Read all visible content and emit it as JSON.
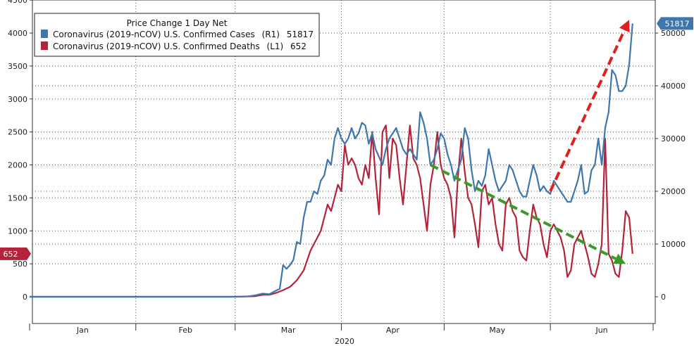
{
  "chart_data": {
    "type": "line",
    "title": "",
    "legend": {
      "title": "Price Change 1 Day Net",
      "placement": "top-left"
    },
    "x_axis": {
      "month_labels": [
        "Jan",
        "Feb",
        "Mar",
        "Apr",
        "May",
        "Jun"
      ],
      "year_label": "2020",
      "range": [
        "2020-01-01",
        "2020-07-01"
      ]
    },
    "y_left": {
      "ticks": [
        0,
        500,
        1000,
        1500,
        2000,
        2500,
        3000,
        3500,
        4000,
        4500
      ],
      "range": [
        -450,
        4500
      ],
      "series": "deaths"
    },
    "y_right": {
      "ticks": [
        0,
        10000,
        20000,
        30000,
        40000,
        50000
      ],
      "range": [
        -5400,
        54000
      ],
      "series": "cases"
    },
    "grid": true,
    "series": [
      {
        "key": "cases",
        "name": "Coronavirus (2019-nCOV) U.S. Confirmed Cases",
        "axis_label": "(R1)",
        "last_value": "51817",
        "axis": "right",
        "color": "#3f76ad",
        "points": [
          [
            "2020-01-01",
            0
          ],
          [
            "2020-01-31",
            0
          ],
          [
            "2020-02-29",
            0
          ],
          [
            "2020-03-01",
            30
          ],
          [
            "2020-03-03",
            30
          ],
          [
            "2020-03-05",
            100
          ],
          [
            "2020-03-07",
            300
          ],
          [
            "2020-03-09",
            600
          ],
          [
            "2020-03-11",
            500
          ],
          [
            "2020-03-13",
            1200
          ],
          [
            "2020-03-14",
            1500
          ],
          [
            "2020-03-15",
            6000
          ],
          [
            "2020-03-16",
            5300
          ],
          [
            "2020-03-17",
            6000
          ],
          [
            "2020-03-18",
            7000
          ],
          [
            "2020-03-19",
            10400
          ],
          [
            "2020-03-20",
            10000
          ],
          [
            "2020-03-21",
            15000
          ],
          [
            "2020-03-22",
            18000
          ],
          [
            "2020-03-23",
            18000
          ],
          [
            "2020-03-24",
            20000
          ],
          [
            "2020-03-25",
            19500
          ],
          [
            "2020-03-26",
            22000
          ],
          [
            "2020-03-27",
            23000
          ],
          [
            "2020-03-28",
            26000
          ],
          [
            "2020-03-29",
            25000
          ],
          [
            "2020-03-30",
            30000
          ],
          [
            "2020-03-31",
            32000
          ],
          [
            "2020-04-01",
            30000
          ],
          [
            "2020-04-02",
            29000
          ],
          [
            "2020-04-03",
            30000
          ],
          [
            "2020-04-04",
            32000
          ],
          [
            "2020-04-05",
            30000
          ],
          [
            "2020-04-06",
            31000
          ],
          [
            "2020-04-07",
            33000
          ],
          [
            "2020-04-08",
            32500
          ],
          [
            "2020-04-09",
            29000
          ],
          [
            "2020-04-10",
            31000
          ],
          [
            "2020-04-11",
            28000
          ],
          [
            "2020-04-12",
            26500
          ],
          [
            "2020-04-13",
            25000
          ],
          [
            "2020-04-14",
            28000
          ],
          [
            "2020-04-15",
            30000
          ],
          [
            "2020-04-16",
            31000
          ],
          [
            "2020-04-17",
            32000
          ],
          [
            "2020-04-18",
            30000
          ],
          [
            "2020-04-19",
            28000
          ],
          [
            "2020-04-20",
            27000
          ],
          [
            "2020-04-21",
            28000
          ],
          [
            "2020-04-22",
            27000
          ],
          [
            "2020-04-23",
            26000
          ],
          [
            "2020-04-24",
            35000
          ],
          [
            "2020-04-25",
            33000
          ],
          [
            "2020-04-26",
            30000
          ],
          [
            "2020-04-27",
            25000
          ],
          [
            "2020-04-28",
            26000
          ],
          [
            "2020-04-29",
            28000
          ],
          [
            "2020-04-30",
            31000
          ],
          [
            "2020-05-01",
            30000
          ],
          [
            "2020-05-02",
            27000
          ],
          [
            "2020-05-03",
            25000
          ],
          [
            "2020-05-04",
            22000
          ],
          [
            "2020-05-05",
            24000
          ],
          [
            "2020-05-06",
            26000
          ],
          [
            "2020-05-07",
            32000
          ],
          [
            "2020-05-08",
            30000
          ],
          [
            "2020-05-09",
            24000
          ],
          [
            "2020-05-10",
            20000
          ],
          [
            "2020-05-11",
            22000
          ],
          [
            "2020-05-12",
            21000
          ],
          [
            "2020-05-13",
            23000
          ],
          [
            "2020-05-14",
            28000
          ],
          [
            "2020-05-15",
            25000
          ],
          [
            "2020-05-16",
            22000
          ],
          [
            "2020-05-17",
            20000
          ],
          [
            "2020-05-18",
            21000
          ],
          [
            "2020-05-19",
            22000
          ],
          [
            "2020-05-20",
            25000
          ],
          [
            "2020-05-21",
            24000
          ],
          [
            "2020-05-22",
            22000
          ],
          [
            "2020-05-23",
            20000
          ],
          [
            "2020-05-24",
            19000
          ],
          [
            "2020-05-25",
            19000
          ],
          [
            "2020-05-26",
            22000
          ],
          [
            "2020-05-27",
            25000
          ],
          [
            "2020-05-28",
            23000
          ],
          [
            "2020-05-29",
            20000
          ],
          [
            "2020-05-30",
            21000
          ],
          [
            "2020-05-31",
            20000
          ],
          [
            "2020-06-01",
            19500
          ],
          [
            "2020-06-02",
            22000
          ],
          [
            "2020-06-03",
            21000
          ],
          [
            "2020-06-04",
            20000
          ],
          [
            "2020-06-05",
            19000
          ],
          [
            "2020-06-06",
            18000
          ],
          [
            "2020-06-07",
            18000
          ],
          [
            "2020-06-08",
            20000
          ],
          [
            "2020-06-09",
            22000
          ],
          [
            "2020-06-10",
            25000
          ],
          [
            "2020-06-11",
            19500
          ],
          [
            "2020-06-12",
            20000
          ],
          [
            "2020-06-13",
            24000
          ],
          [
            "2020-06-14",
            25000
          ],
          [
            "2020-06-15",
            30000
          ],
          [
            "2020-06-16",
            25000
          ],
          [
            "2020-06-17",
            32000
          ],
          [
            "2020-06-18",
            35000
          ],
          [
            "2020-06-19",
            43000
          ],
          [
            "2020-06-20",
            42000
          ],
          [
            "2020-06-21",
            39000
          ],
          [
            "2020-06-22",
            39000
          ],
          [
            "2020-06-23",
            40000
          ],
          [
            "2020-06-24",
            44000
          ],
          [
            "2020-06-25",
            51817
          ]
        ]
      },
      {
        "key": "deaths",
        "name": "Coronavirus (2019-nCOV) U.S. Confirmed Deaths",
        "axis_label": "(L1)",
        "last_value": "652",
        "axis": "left",
        "color": "#b3243a",
        "points": [
          [
            "2020-01-01",
            0
          ],
          [
            "2020-01-31",
            0
          ],
          [
            "2020-02-29",
            0
          ],
          [
            "2020-03-01",
            0
          ],
          [
            "2020-03-05",
            5
          ],
          [
            "2020-03-07",
            10
          ],
          [
            "2020-03-09",
            30
          ],
          [
            "2020-03-11",
            30
          ],
          [
            "2020-03-13",
            60
          ],
          [
            "2020-03-15",
            100
          ],
          [
            "2020-03-17",
            150
          ],
          [
            "2020-03-18",
            200
          ],
          [
            "2020-03-19",
            250
          ],
          [
            "2020-03-21",
            400
          ],
          [
            "2020-03-22",
            550
          ],
          [
            "2020-03-23",
            700
          ],
          [
            "2020-03-24",
            800
          ],
          [
            "2020-03-25",
            900
          ],
          [
            "2020-03-26",
            1000
          ],
          [
            "2020-03-27",
            1200
          ],
          [
            "2020-03-28",
            1400
          ],
          [
            "2020-03-29",
            1300
          ],
          [
            "2020-03-30",
            1500
          ],
          [
            "2020-03-31",
            1700
          ],
          [
            "2020-04-01",
            1600
          ],
          [
            "2020-04-02",
            2300
          ],
          [
            "2020-04-03",
            2000
          ],
          [
            "2020-04-04",
            2100
          ],
          [
            "2020-04-05",
            2000
          ],
          [
            "2020-04-06",
            1800
          ],
          [
            "2020-04-07",
            1700
          ],
          [
            "2020-04-08",
            2000
          ],
          [
            "2020-04-09",
            1800
          ],
          [
            "2020-04-10",
            2500
          ],
          [
            "2020-04-11",
            1800
          ],
          [
            "2020-04-12",
            1250
          ],
          [
            "2020-04-13",
            2500
          ],
          [
            "2020-04-14",
            2600
          ],
          [
            "2020-04-15",
            1800
          ],
          [
            "2020-04-16",
            2400
          ],
          [
            "2020-04-17",
            2300
          ],
          [
            "2020-04-18",
            1800
          ],
          [
            "2020-04-19",
            1400
          ],
          [
            "2020-04-20",
            2000
          ],
          [
            "2020-04-21",
            2600
          ],
          [
            "2020-04-22",
            2100
          ],
          [
            "2020-04-23",
            2000
          ],
          [
            "2020-04-24",
            1800
          ],
          [
            "2020-04-25",
            1400
          ],
          [
            "2020-04-26",
            1000
          ],
          [
            "2020-04-27",
            1700
          ],
          [
            "2020-04-28",
            2000
          ],
          [
            "2020-04-29",
            2500
          ],
          [
            "2020-04-30",
            2000
          ],
          [
            "2020-05-01",
            1800
          ],
          [
            "2020-05-02",
            1700
          ],
          [
            "2020-05-03",
            1500
          ],
          [
            "2020-05-04",
            900
          ],
          [
            "2020-05-05",
            1800
          ],
          [
            "2020-05-06",
            2400
          ],
          [
            "2020-05-07",
            1900
          ],
          [
            "2020-05-08",
            1500
          ],
          [
            "2020-05-09",
            1400
          ],
          [
            "2020-05-10",
            1100
          ],
          [
            "2020-05-11",
            750
          ],
          [
            "2020-05-12",
            1600
          ],
          [
            "2020-05-13",
            1700
          ],
          [
            "2020-05-14",
            1400
          ],
          [
            "2020-05-15",
            1500
          ],
          [
            "2020-05-16",
            1100
          ],
          [
            "2020-05-17",
            800
          ],
          [
            "2020-05-18",
            700
          ],
          [
            "2020-05-19",
            1400
          ],
          [
            "2020-05-20",
            1500
          ],
          [
            "2020-05-21",
            1300
          ],
          [
            "2020-05-22",
            1200
          ],
          [
            "2020-05-23",
            700
          ],
          [
            "2020-05-24",
            600
          ],
          [
            "2020-05-25",
            550
          ],
          [
            "2020-05-26",
            1000
          ],
          [
            "2020-05-27",
            1400
          ],
          [
            "2020-05-28",
            1200
          ],
          [
            "2020-05-29",
            1100
          ],
          [
            "2020-05-30",
            800
          ],
          [
            "2020-05-31",
            600
          ],
          [
            "2020-06-01",
            1000
          ],
          [
            "2020-06-02",
            1100
          ],
          [
            "2020-06-03",
            1000
          ],
          [
            "2020-06-04",
            900
          ],
          [
            "2020-06-05",
            700
          ],
          [
            "2020-06-06",
            300
          ],
          [
            "2020-06-07",
            400
          ],
          [
            "2020-06-08",
            800
          ],
          [
            "2020-06-09",
            900
          ],
          [
            "2020-06-10",
            1000
          ],
          [
            "2020-06-11",
            800
          ],
          [
            "2020-06-12",
            600
          ],
          [
            "2020-06-13",
            350
          ],
          [
            "2020-06-14",
            300
          ],
          [
            "2020-06-15",
            500
          ],
          [
            "2020-06-16",
            800
          ],
          [
            "2020-06-17",
            2400
          ],
          [
            "2020-06-18",
            650
          ],
          [
            "2020-06-19",
            550
          ],
          [
            "2020-06-20",
            350
          ],
          [
            "2020-06-21",
            300
          ],
          [
            "2020-06-22",
            700
          ],
          [
            "2020-06-23",
            1300
          ],
          [
            "2020-06-24",
            1200
          ],
          [
            "2020-06-25",
            652
          ]
        ]
      }
    ],
    "annotations": [
      {
        "type": "arrow",
        "color": "#e02020",
        "from": [
          "2020-06-01",
          20000
        ],
        "to": [
          "2020-06-24",
          52500
        ],
        "axis": "right"
      },
      {
        "type": "arrow",
        "color": "#3c9a2c",
        "from": [
          "2020-04-27",
          2000
        ],
        "to": [
          "2020-06-23",
          500
        ],
        "axis": "left"
      }
    ]
  }
}
